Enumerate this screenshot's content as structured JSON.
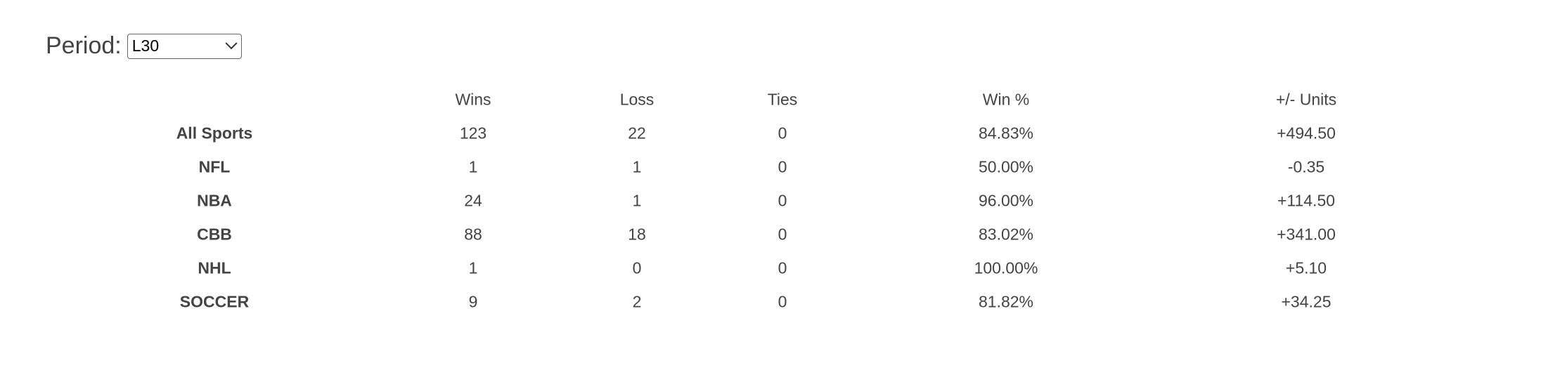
{
  "period": {
    "label": "Period:",
    "selected": "L30"
  },
  "table": {
    "headers": [
      "Wins",
      "Loss",
      "Ties",
      "Win %",
      "+/- Units"
    ],
    "rows": [
      {
        "sport": "All Sports",
        "wins": "123",
        "loss": "22",
        "ties": "0",
        "win_pct": "84.83%",
        "units": "+494.50"
      },
      {
        "sport": "NFL",
        "wins": "1",
        "loss": "1",
        "ties": "0",
        "win_pct": "50.00%",
        "units": "-0.35"
      },
      {
        "sport": "NBA",
        "wins": "24",
        "loss": "1",
        "ties": "0",
        "win_pct": "96.00%",
        "units": "+114.50"
      },
      {
        "sport": "CBB",
        "wins": "88",
        "loss": "18",
        "ties": "0",
        "win_pct": "83.02%",
        "units": "+341.00"
      },
      {
        "sport": "NHL",
        "wins": "1",
        "loss": "0",
        "ties": "0",
        "win_pct": "100.00%",
        "units": "+5.10"
      },
      {
        "sport": "SOCCER",
        "wins": "9",
        "loss": "2",
        "ties": "0",
        "win_pct": "81.82%",
        "units": "+34.25"
      }
    ]
  }
}
